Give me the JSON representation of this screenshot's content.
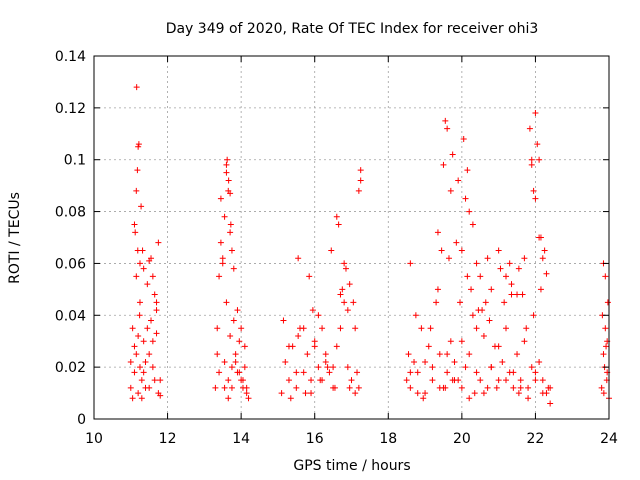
{
  "chart_data": {
    "type": "scatter",
    "title": "Day 349 of 2020, Rate Of TEC Index for receiver ohi3",
    "xlabel": "GPS time / hours",
    "ylabel": "ROTI / TECUs",
    "xlim": [
      10,
      24
    ],
    "ylim": [
      0,
      0.14
    ],
    "x_ticks": [
      "10",
      "12",
      "14",
      "16",
      "18",
      "20",
      "22",
      "24"
    ],
    "y_ticks": [
      "0",
      "0.02",
      "0.04",
      "0.06",
      "0.08",
      "0.1",
      "0.12",
      "0.14"
    ],
    "grid": true,
    "marker": "+",
    "color": "#ff0000",
    "series": [
      {
        "x": [
          11.0,
          11.05,
          11.1,
          11.15,
          11.2,
          11.25,
          11.3,
          11.35,
          11.4,
          11.45,
          11.5,
          11.55,
          11.6,
          11.65,
          11.7,
          11.75,
          11.8,
          11.0,
          11.05,
          11.1,
          11.15,
          11.2,
          11.25,
          11.3,
          11.35,
          11.4,
          11.5,
          11.6,
          11.7,
          11.8,
          11.1,
          11.15,
          11.2,
          11.25,
          11.35,
          11.45,
          11.55,
          11.65,
          11.75,
          11.12,
          11.18,
          11.22,
          11.28,
          11.32,
          11.5,
          11.6,
          11.7,
          11.24,
          11.16,
          11.19,
          13.3,
          13.35,
          13.4,
          13.45,
          13.5,
          13.55,
          13.6,
          13.65,
          13.7,
          13.75,
          13.8,
          13.85,
          13.9,
          13.95,
          14.0,
          14.05,
          14.1,
          14.15,
          14.2,
          13.35,
          13.45,
          13.55,
          13.6,
          13.65,
          13.7,
          13.75,
          13.8,
          13.9,
          14.0,
          14.1,
          13.4,
          13.5,
          13.6,
          13.62,
          13.66,
          13.7,
          13.72,
          13.55,
          13.65,
          13.75,
          13.85,
          13.95,
          14.05,
          14.15,
          15.1,
          15.2,
          15.3,
          15.4,
          15.5,
          15.6,
          15.7,
          15.8,
          15.9,
          16.0,
          16.1,
          16.2,
          16.3,
          16.4,
          16.5,
          16.6,
          16.7,
          16.8,
          16.9,
          17.0,
          17.1,
          17.2,
          15.15,
          15.35,
          15.55,
          15.75,
          15.95,
          16.15,
          16.35,
          16.55,
          16.75,
          16.95,
          17.15,
          15.3,
          15.5,
          15.7,
          15.9,
          16.1,
          16.3,
          16.5,
          16.7,
          16.9,
          17.1,
          15.85,
          15.55,
          16.6,
          16.65,
          16.8,
          16.95,
          17.05,
          17.25,
          17.25,
          17.2,
          16.2,
          16.0,
          16.45,
          16.85,
          18.5,
          18.6,
          18.7,
          18.8,
          18.9,
          19.0,
          19.1,
          19.2,
          19.3,
          19.4,
          19.5,
          19.6,
          19.7,
          19.8,
          19.9,
          20.0,
          20.1,
          20.2,
          20.3,
          20.4,
          20.5,
          20.6,
          20.7,
          20.8,
          20.9,
          21.0,
          21.1,
          21.2,
          21.3,
          21.4,
          21.5,
          21.6,
          21.7,
          21.8,
          21.9,
          22.0,
          22.1,
          22.2,
          22.3,
          22.4,
          18.55,
          18.75,
          18.95,
          19.15,
          19.35,
          19.55,
          19.75,
          19.95,
          20.15,
          20.35,
          20.55,
          20.75,
          20.95,
          21.15,
          21.35,
          21.55,
          21.75,
          21.95,
          22.15,
          22.35,
          18.6,
          18.8,
          19.0,
          19.2,
          19.4,
          19.6,
          19.8,
          20.0,
          20.2,
          20.4,
          20.6,
          20.8,
          21.0,
          21.2,
          21.4,
          21.6,
          21.8,
          22.0,
          22.2,
          22.4,
          19.35,
          19.45,
          19.5,
          19.55,
          19.6,
          19.7,
          19.75,
          19.9,
          20.0,
          20.05,
          20.1,
          20.15,
          20.2,
          20.3,
          20.4,
          19.65,
          19.85,
          20.5,
          20.7,
          20.8,
          21.0,
          21.05,
          21.2,
          21.3,
          21.35,
          21.5,
          21.55,
          21.7,
          21.9,
          21.95,
          22.0,
          22.05,
          22.1,
          22.15,
          22.2,
          22.25,
          22.3,
          21.85,
          21.9,
          22.0,
          22.1,
          18.6,
          20.65,
          20.25,
          20.45,
          21.65,
          23.8,
          23.85,
          23.9,
          23.95,
          24.0,
          23.82,
          23.88,
          23.92,
          23.97,
          23.85,
          23.9,
          23.95,
          23.86,
          23.94
        ],
        "y": [
          0.012,
          0.035,
          0.018,
          0.025,
          0.01,
          0.045,
          0.015,
          0.03,
          0.022,
          0.052,
          0.012,
          0.038,
          0.02,
          0.015,
          0.042,
          0.01,
          0.009,
          0.022,
          0.008,
          0.028,
          0.055,
          0.032,
          0.02,
          0.008,
          0.018,
          0.012,
          0.025,
          0.03,
          0.033,
          0.015,
          0.075,
          0.088,
          0.105,
          0.06,
          0.058,
          0.035,
          0.062,
          0.048,
          0.068,
          0.072,
          0.096,
          0.106,
          0.082,
          0.065,
          0.061,
          0.055,
          0.045,
          0.04,
          0.128,
          0.065,
          0.012,
          0.035,
          0.018,
          0.085,
          0.062,
          0.022,
          0.045,
          0.015,
          0.032,
          0.012,
          0.038,
          0.025,
          0.018,
          0.03,
          0.015,
          0.012,
          0.02,
          0.01,
          0.008,
          0.025,
          0.068,
          0.078,
          0.098,
          0.088,
          0.072,
          0.065,
          0.058,
          0.042,
          0.035,
          0.028,
          0.055,
          0.06,
          0.095,
          0.1,
          0.092,
          0.087,
          0.075,
          0.012,
          0.008,
          0.02,
          0.022,
          0.018,
          0.015,
          0.012,
          0.01,
          0.022,
          0.015,
          0.028,
          0.012,
          0.035,
          0.018,
          0.025,
          0.01,
          0.03,
          0.02,
          0.015,
          0.022,
          0.018,
          0.012,
          0.028,
          0.035,
          0.045,
          0.02,
          0.015,
          0.01,
          0.012,
          0.038,
          0.008,
          0.032,
          0.01,
          0.042,
          0.015,
          0.02,
          0.012,
          0.05,
          0.012,
          0.018,
          0.028,
          0.018,
          0.035,
          0.015,
          0.04,
          0.025,
          0.02,
          0.048,
          0.042,
          0.035,
          0.055,
          0.062,
          0.078,
          0.075,
          0.06,
          0.052,
          0.045,
          0.092,
          0.096,
          0.088,
          0.035,
          0.028,
          0.065,
          0.058,
          0.015,
          0.012,
          0.022,
          0.018,
          0.035,
          0.01,
          0.028,
          0.015,
          0.045,
          0.025,
          0.012,
          0.018,
          0.03,
          0.022,
          0.015,
          0.03,
          0.02,
          0.025,
          0.04,
          0.018,
          0.015,
          0.032,
          0.012,
          0.02,
          0.028,
          0.015,
          0.022,
          0.035,
          0.018,
          0.012,
          0.025,
          0.015,
          0.03,
          0.012,
          0.02,
          0.018,
          0.022,
          0.015,
          0.01,
          0.012,
          0.025,
          0.04,
          0.008,
          0.035,
          0.05,
          0.012,
          0.015,
          0.045,
          0.055,
          0.01,
          0.042,
          0.038,
          0.012,
          0.045,
          0.048,
          0.01,
          0.035,
          0.04,
          0.05,
          0.012,
          0.018,
          0.01,
          0.022,
          0.02,
          0.012,
          0.025,
          0.015,
          0.012,
          0.008,
          0.035,
          0.01,
          0.02,
          0.028,
          0.015,
          0.018,
          0.012,
          0.008,
          0.015,
          0.01,
          0.006,
          0.072,
          0.065,
          0.098,
          0.115,
          0.112,
          0.088,
          0.102,
          0.092,
          0.065,
          0.108,
          0.085,
          0.096,
          0.08,
          0.075,
          0.06,
          0.062,
          0.068,
          0.055,
          0.062,
          0.05,
          0.065,
          0.058,
          0.055,
          0.06,
          0.052,
          0.048,
          0.058,
          0.062,
          0.1,
          0.088,
          0.118,
          0.106,
          0.1,
          0.07,
          0.062,
          0.065,
          0.056,
          0.112,
          0.098,
          0.085,
          0.07,
          0.06,
          0.045,
          0.05,
          0.042,
          0.048,
          0.012,
          0.025,
          0.035,
          0.018,
          0.008,
          0.04,
          0.02,
          0.028,
          0.045,
          0.06,
          0.055,
          0.03,
          0.01,
          0.015
        ]
      }
    ]
  }
}
